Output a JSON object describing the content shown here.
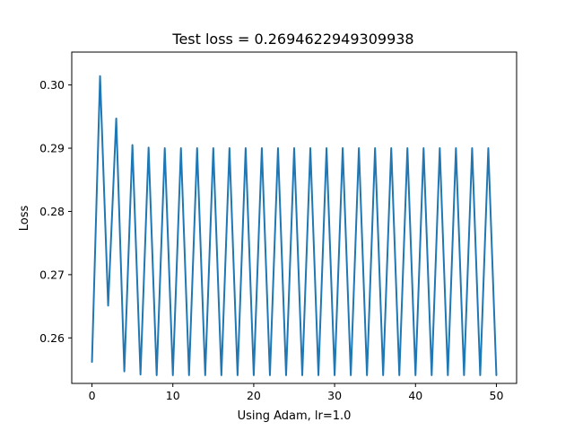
{
  "chart_data": {
    "type": "line",
    "title": "Test loss = 0.2694622949309938",
    "xlabel": "Using Adam, lr=1.0",
    "ylabel": "Loss",
    "xlim": [
      -2.5,
      52.5
    ],
    "ylim": [
      0.2528,
      0.3052
    ],
    "xticks": [
      0,
      10,
      20,
      30,
      40,
      50
    ],
    "yticks": [
      0.26,
      0.27,
      0.28,
      0.29,
      0.3
    ],
    "ytick_labels": [
      "0.26",
      "0.27",
      "0.28",
      "0.29",
      "0.30"
    ],
    "grid": false,
    "series": [
      {
        "color": "#1f77b4",
        "x": [
          0,
          1,
          2,
          3,
          4,
          5,
          6,
          7,
          8,
          9,
          10,
          11,
          12,
          13,
          14,
          15,
          16,
          17,
          18,
          19,
          20,
          21,
          22,
          23,
          24,
          25,
          26,
          27,
          28,
          29,
          30,
          31,
          32,
          33,
          34,
          35,
          36,
          37,
          38,
          39,
          40,
          41,
          42,
          43,
          44,
          45,
          46,
          47,
          48,
          49,
          50
        ],
        "y": [
          0.2562,
          0.3014,
          0.2651,
          0.2947,
          0.2547,
          0.2905,
          0.2542,
          0.2901,
          0.2541,
          0.29,
          0.2541,
          0.29,
          0.2541,
          0.29,
          0.2541,
          0.29,
          0.2541,
          0.29,
          0.2541,
          0.29,
          0.2541,
          0.29,
          0.2541,
          0.29,
          0.2541,
          0.29,
          0.2541,
          0.29,
          0.2541,
          0.29,
          0.2541,
          0.29,
          0.2541,
          0.29,
          0.2541,
          0.29,
          0.2541,
          0.29,
          0.2541,
          0.29,
          0.2541,
          0.29,
          0.2541,
          0.29,
          0.2541,
          0.29,
          0.2541,
          0.29,
          0.2541,
          0.29,
          0.2541
        ]
      }
    ]
  }
}
